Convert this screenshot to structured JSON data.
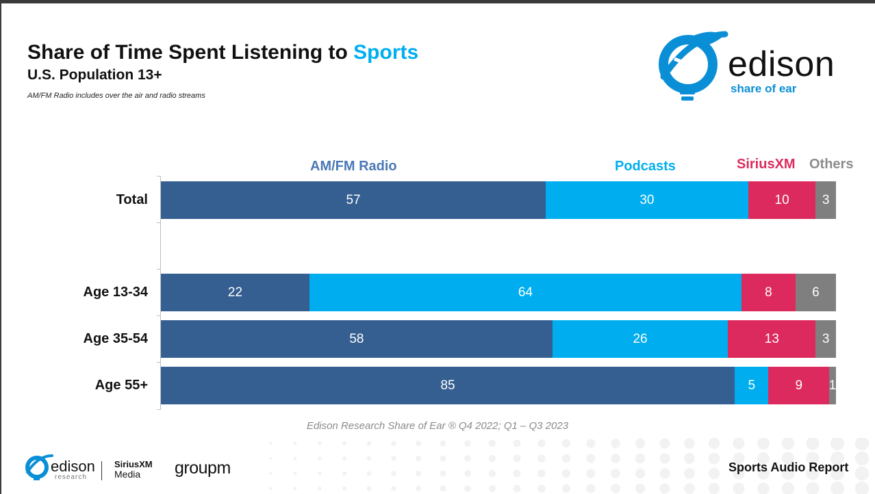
{
  "header": {
    "title_prefix": "Share of Time Spent Listening to",
    "title_highlight": "Sports",
    "subtitle": "U.S. Population 13+",
    "note": "AM/FM Radio includes over the air and radio streams"
  },
  "brand": {
    "wordmark": "edison",
    "tagline": "share of ear"
  },
  "colors": {
    "amfm": "#365f91",
    "podcasts": "#00aeef",
    "siriusxm": "#dd2a5e",
    "others": "#7f7f7f",
    "brand_blue": "#0a8fd6"
  },
  "chart_data": {
    "type": "bar",
    "orientation": "horizontal",
    "stacked": true,
    "title": "Share of Time Spent Listening to Sports",
    "subtitle": "U.S. Population 13+",
    "categories": [
      "Total",
      "Age 13-34",
      "Age 35-54",
      "Age 55+"
    ],
    "series": [
      {
        "name": "AM/FM Radio",
        "values": [
          57,
          22,
          58,
          85
        ]
      },
      {
        "name": "Podcasts",
        "values": [
          30,
          64,
          26,
          5
        ]
      },
      {
        "name": "SiriusXM",
        "values": [
          10,
          8,
          13,
          9
        ]
      },
      {
        "name": "Others",
        "values": [
          3,
          6,
          3,
          1
        ]
      }
    ],
    "legend_position": "top",
    "xlim": [
      0,
      100
    ],
    "grid": false,
    "source": "Edison Research Share of Ear ® Q4 2022; Q1 – Q3 2023"
  },
  "footer": {
    "edison_wordmark": "edison",
    "edison_sub": "research",
    "siriusxm_line1": "SiriusXM",
    "siriusxm_line2": "Media",
    "groupm": "groupm",
    "report_name": "Sports Audio Report"
  }
}
